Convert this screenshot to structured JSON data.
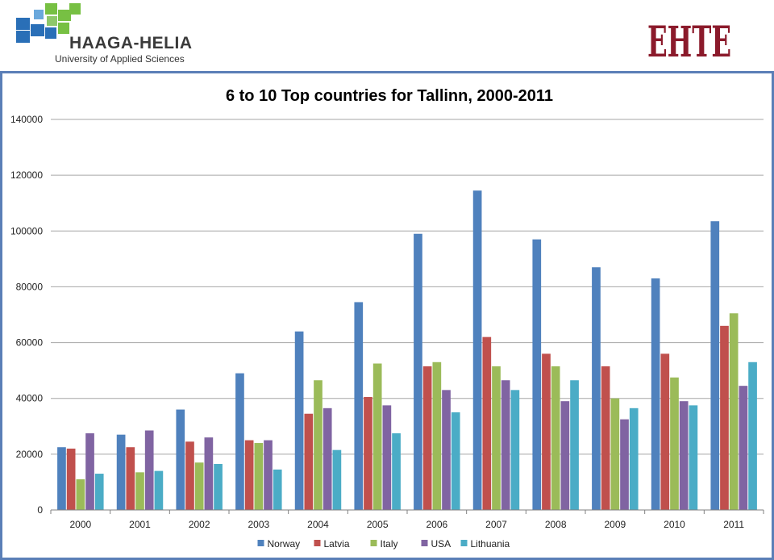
{
  "header": {
    "left_logo_name": "HAAGA-HELIA",
    "left_logo_subtitle": "University of Applied Sciences",
    "right_logo_text": "EHTE"
  },
  "chart_data": {
    "type": "bar",
    "title": "6 to 10 Top countries for Tallinn, 2000-2011",
    "xlabel": "",
    "ylabel": "",
    "ylim": [
      0,
      140000
    ],
    "yticks": [
      0,
      20000,
      40000,
      60000,
      80000,
      100000,
      120000,
      140000
    ],
    "grid": true,
    "legend_position": "bottom",
    "categories": [
      "2000",
      "2001",
      "2002",
      "2003",
      "2004",
      "2005",
      "2006",
      "2007",
      "2008",
      "2009",
      "2010",
      "2011"
    ],
    "series": [
      {
        "name": "Norway",
        "color": "#4f81bd",
        "values": [
          22500,
          27000,
          36000,
          49000,
          64000,
          74500,
          99000,
          114500,
          97000,
          87000,
          83000,
          103500
        ]
      },
      {
        "name": "Latvia",
        "color": "#c0504d",
        "values": [
          22000,
          22500,
          24500,
          25000,
          34500,
          40500,
          51500,
          62000,
          56000,
          51500,
          56000,
          66000
        ]
      },
      {
        "name": "Italy",
        "color": "#9bbb59",
        "values": [
          11000,
          13500,
          17000,
          24000,
          46500,
          52500,
          53000,
          51500,
          51500,
          40000,
          47500,
          70500
        ]
      },
      {
        "name": "USA",
        "color": "#8064a2",
        "values": [
          27500,
          28500,
          26000,
          25000,
          36500,
          37500,
          43000,
          46500,
          39000,
          32500,
          39000,
          44500
        ]
      },
      {
        "name": "Lithuania",
        "color": "#4bacc6",
        "values": [
          13000,
          14000,
          16500,
          14500,
          21500,
          27500,
          35000,
          43000,
          46500,
          36500,
          37500,
          53000
        ]
      }
    ]
  }
}
